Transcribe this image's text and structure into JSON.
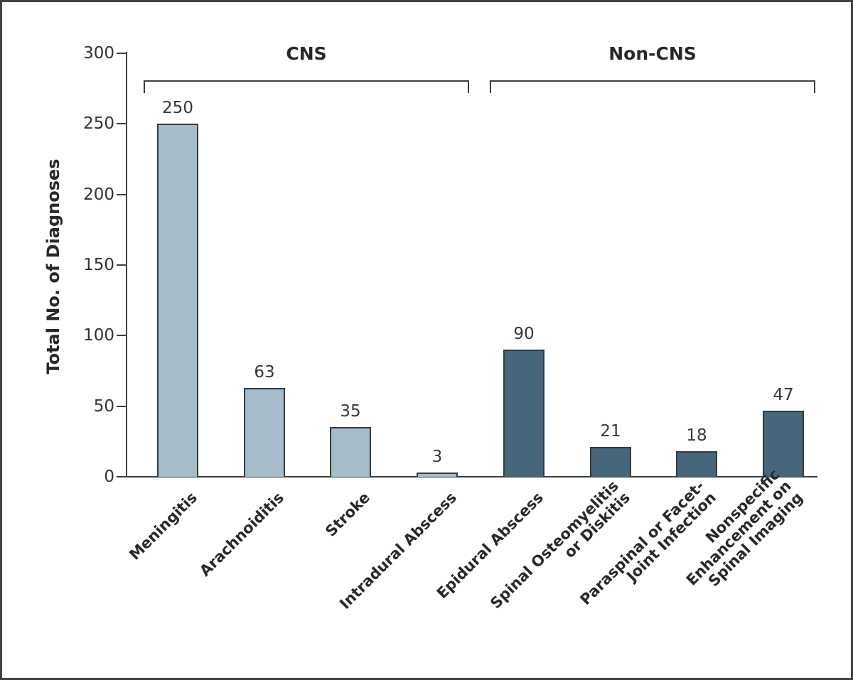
{
  "chart_data": {
    "type": "bar",
    "title": "",
    "ylabel": "Total No. of Diagnoses",
    "xlabel": "",
    "ylim": [
      0,
      300
    ],
    "yticks": [
      0,
      50,
      100,
      150,
      200,
      250,
      300
    ],
    "grid": false,
    "legend_position": "none",
    "categories": [
      "Meningitis",
      "Arachnoiditis",
      "Stroke",
      "Intradural Abscess",
      "Epidural Abscess",
      "Spinal Osteomyelitis or Diskitis",
      "Paraspinal or Facet-Joint Infection",
      "Nonspecific Enhancement on Spinal Imaging"
    ],
    "category_display_lines": [
      [
        "Meningitis"
      ],
      [
        "Arachnoiditis"
      ],
      [
        "Stroke"
      ],
      [
        "Intradural Abscess"
      ],
      [
        "Epidural Abscess"
      ],
      [
        "Spinal Osteomyelitis",
        "or Diskitis"
      ],
      [
        "Paraspinal or Facet-",
        "Joint Infection"
      ],
      [
        "Nonspecific",
        "Enhancement on",
        "Spinal Imaging"
      ]
    ],
    "values": [
      250,
      63,
      35,
      3,
      90,
      21,
      18,
      47
    ],
    "value_labels": [
      "250",
      "63",
      "35",
      "3",
      "90",
      "21",
      "18",
      "47"
    ],
    "series": [
      {
        "name": "CNS",
        "values": [
          250,
          63,
          35,
          3
        ]
      },
      {
        "name": "Non-CNS",
        "values": [
          90,
          21,
          18,
          47
        ]
      }
    ],
    "groups": [
      {
        "label": "CNS",
        "color": "#a6bccb",
        "category_span": [
          0,
          3
        ]
      },
      {
        "label": "Non-CNS",
        "color": "#45667b",
        "category_span": [
          4,
          7
        ]
      }
    ],
    "colors": {
      "cns_bar": "#a6bccb",
      "non_cns_bar": "#45667b",
      "bar_border": "#363b3f",
      "axis": "#3a3f44",
      "text": "#26292c",
      "frame_border": "#3f4347",
      "background": "#ffffff"
    }
  }
}
